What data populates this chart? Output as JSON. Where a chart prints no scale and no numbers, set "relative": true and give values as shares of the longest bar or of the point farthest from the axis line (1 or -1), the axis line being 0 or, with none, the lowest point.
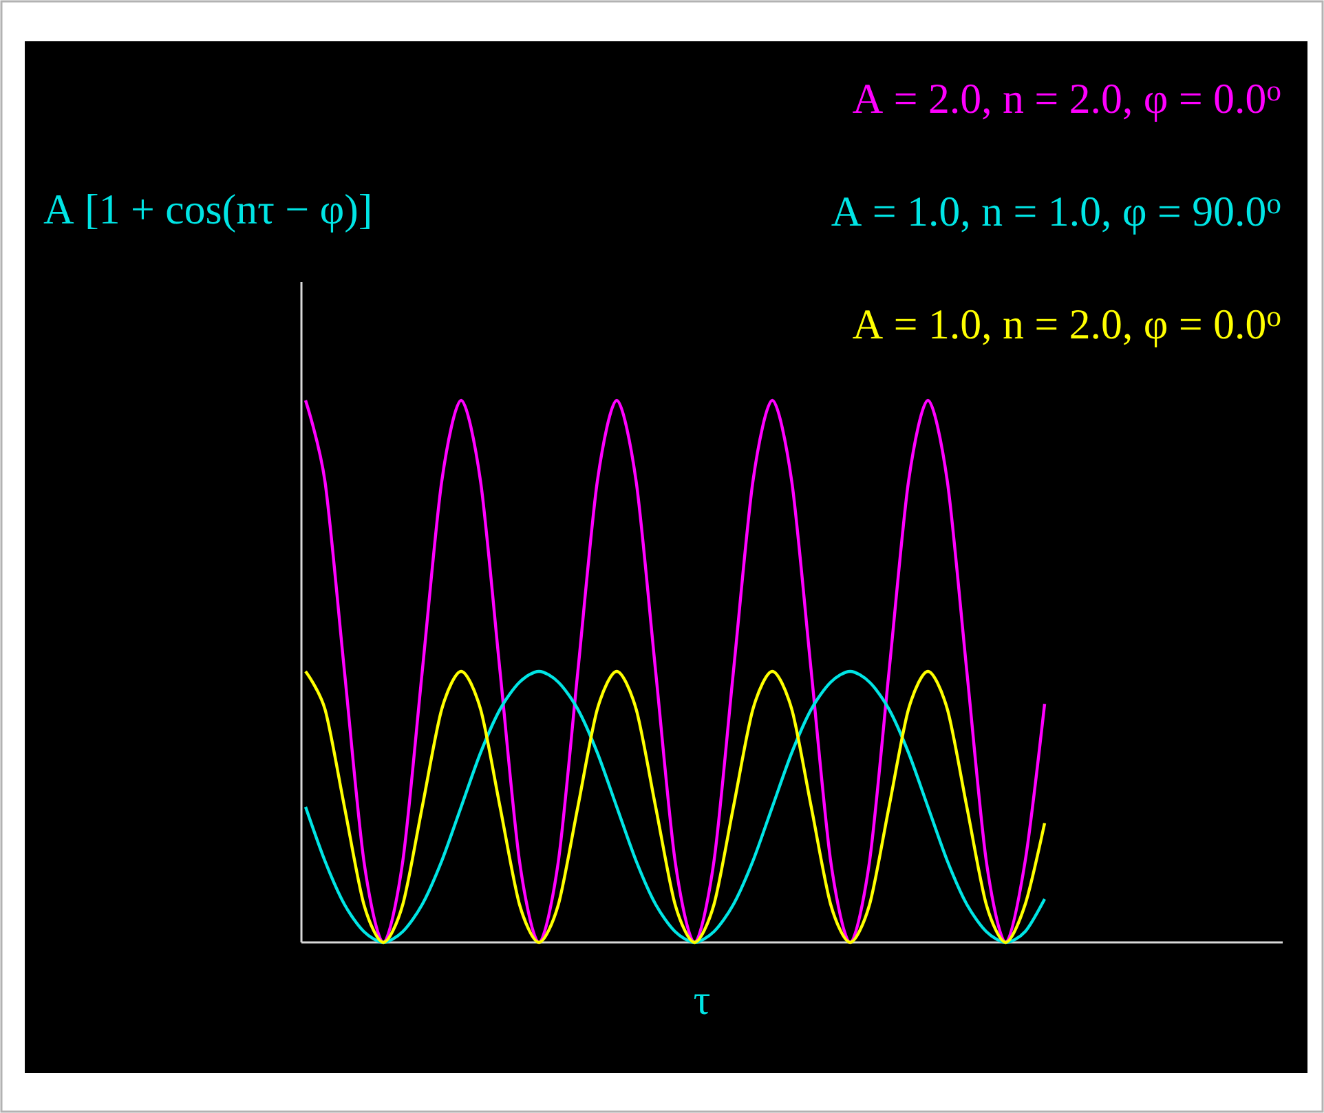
{
  "chart_data": {
    "type": "line",
    "title": "A [1 + cos(nτ − φ)]",
    "xlabel": "τ",
    "relative": true,
    "legend": "top right",
    "categories": [
      null,
      null,
      null,
      null,
      null,
      null,
      null,
      null,
      null,
      null,
      null,
      null,
      null,
      null,
      null,
      null,
      null,
      null,
      null,
      null,
      null,
      null,
      null,
      null,
      null,
      null,
      null,
      null,
      null,
      null,
      null,
      null,
      null,
      null,
      null,
      null,
      null,
      null,
      null
    ],
    "series": [
      {
        "name": "A = 2.0, n = 2.0, φ = 0.0$^{o}$",
        "color": "#ff00ff",
        "values": [
          1,
          0.85,
          0.5,
          0.15,
          0,
          0.15,
          0.5,
          0.85,
          1,
          0.85,
          0.5,
          0.15,
          0,
          0.15,
          0.5,
          0.85,
          1,
          0.85,
          0.5,
          0.15,
          0,
          0.15,
          0.5,
          0.85,
          1,
          0.85,
          0.5,
          0.15,
          0,
          0.15,
          0.5,
          0.85,
          1,
          0.85,
          0.5,
          0.15,
          0,
          0.15,
          0.44
        ]
      },
      {
        "name": "A = 1.0, n = 1.0, φ = 90.0$^{o}$",
        "color": "#00e5e5",
        "values": [
          0.25,
          0.15,
          0.07,
          0.02,
          0,
          0.02,
          0.07,
          0.15,
          0.25,
          0.35,
          0.43,
          0.48,
          0.5,
          0.48,
          0.43,
          0.35,
          0.25,
          0.15,
          0.07,
          0.02,
          0,
          0.02,
          0.07,
          0.15,
          0.25,
          0.35,
          0.43,
          0.48,
          0.5,
          0.48,
          0.43,
          0.35,
          0.25,
          0.15,
          0.07,
          0.02,
          0,
          0.02,
          0.08
        ]
      },
      {
        "name": "A = 1.0, n = 2.0, φ = 0.0$^{o}$",
        "color": "#ffff00",
        "values": [
          0.5,
          0.43,
          0.25,
          0.07,
          0,
          0.07,
          0.25,
          0.43,
          0.5,
          0.43,
          0.25,
          0.07,
          0,
          0.07,
          0.25,
          0.43,
          0.5,
          0.43,
          0.25,
          0.07,
          0,
          0.07,
          0.25,
          0.43,
          0.5,
          0.43,
          0.25,
          0.07,
          0,
          0.07,
          0.25,
          0.43,
          0.5,
          0.43,
          0.25,
          0.07,
          0,
          0.07,
          0.22
        ]
      }
    ]
  }
}
